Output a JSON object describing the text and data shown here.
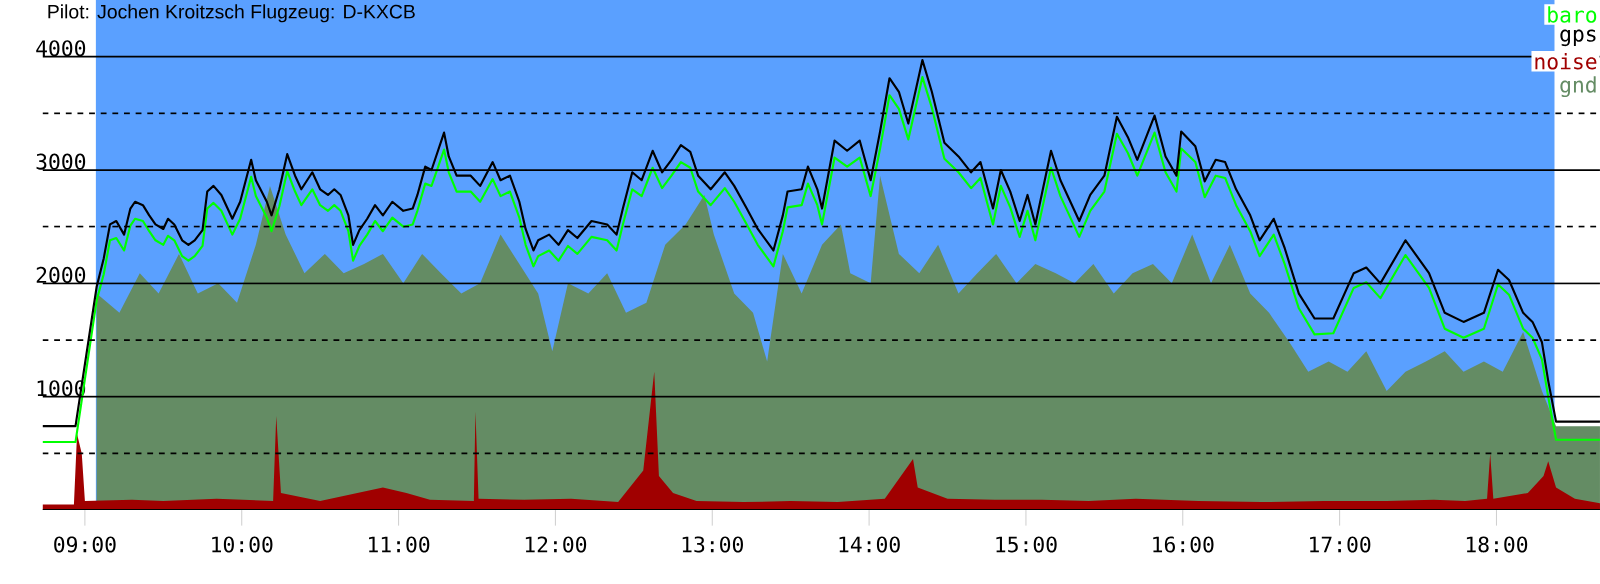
{
  "chart_data": {
    "type": "line",
    "title": "Pilot: Jochen Kroitzsch Flugzeug: D-KXCB",
    "x": [
      8.73,
      8.94,
      9.075,
      9.12,
      9.16,
      9.2,
      9.25,
      9.29,
      9.32,
      9.37,
      9.41,
      9.45,
      9.5,
      9.53,
      9.57,
      9.62,
      9.66,
      9.7,
      9.75,
      9.78,
      9.82,
      9.87,
      9.91,
      9.94,
      9.99,
      10.06,
      10.09,
      10.16,
      10.19,
      10.24,
      10.29,
      10.34,
      10.38,
      10.45,
      10.5,
      10.55,
      10.59,
      10.63,
      10.68,
      10.71,
      10.75,
      10.8,
      10.85,
      10.9,
      10.96,
      11.03,
      11.09,
      11.12,
      11.17,
      11.21,
      11.29,
      11.32,
      11.37,
      11.46,
      11.52,
      11.6,
      11.65,
      11.71,
      11.77,
      11.81,
      11.86,
      11.89,
      11.96,
      12.02,
      12.08,
      12.14,
      12.23,
      12.33,
      12.39,
      12.43,
      12.49,
      12.55,
      12.62,
      12.68,
      12.74,
      12.8,
      12.86,
      12.91,
      12.99,
      13.08,
      13.14,
      13.22,
      13.29,
      13.39,
      13.45,
      13.48,
      13.57,
      13.61,
      13.67,
      13.7,
      13.78,
      13.86,
      13.94,
      14.01,
      14.07,
      14.13,
      14.19,
      14.25,
      14.34,
      14.4,
      14.48,
      14.57,
      14.65,
      14.71,
      14.79,
      14.84,
      14.9,
      14.96,
      15.01,
      15.06,
      15.16,
      15.22,
      15.34,
      15.41,
      15.5,
      15.58,
      15.65,
      15.71,
      15.82,
      15.89,
      15.96,
      15.99,
      16.08,
      16.14,
      16.21,
      16.27,
      16.34,
      16.43,
      16.49,
      16.58,
      16.65,
      16.74,
      16.84,
      16.96,
      17.09,
      17.17,
      17.26,
      17.42,
      17.57,
      17.67,
      17.79,
      17.92,
      18.01,
      18.08,
      18.17,
      18.23,
      18.29,
      18.33,
      18.38,
      18.66
    ],
    "series": [
      {
        "name": "baro",
        "color": "#00ff00",
        "values": [
          600,
          600,
          1850,
          2080,
          2380,
          2400,
          2290,
          2510,
          2570,
          2550,
          2460,
          2380,
          2340,
          2420,
          2380,
          2240,
          2200,
          2240,
          2330,
          2660,
          2710,
          2640,
          2520,
          2430,
          2570,
          2940,
          2770,
          2580,
          2460,
          2680,
          2990,
          2810,
          2690,
          2830,
          2690,
          2640,
          2690,
          2640,
          2460,
          2200,
          2330,
          2430,
          2550,
          2460,
          2580,
          2500,
          2520,
          2640,
          2880,
          2860,
          3180,
          2980,
          2810,
          2810,
          2720,
          2920,
          2770,
          2810,
          2580,
          2340,
          2150,
          2240,
          2290,
          2200,
          2330,
          2260,
          2410,
          2380,
          2290,
          2520,
          2830,
          2770,
          3020,
          2840,
          2950,
          3070,
          3020,
          2810,
          2690,
          2840,
          2720,
          2520,
          2340,
          2150,
          2460,
          2670,
          2690,
          2880,
          2690,
          2520,
          3110,
          3030,
          3110,
          2770,
          3190,
          3660,
          3540,
          3270,
          3820,
          3550,
          3100,
          2980,
          2840,
          2930,
          2520,
          2860,
          2670,
          2410,
          2640,
          2380,
          3020,
          2770,
          2410,
          2640,
          2810,
          3320,
          3150,
          2950,
          3330,
          2980,
          2810,
          3190,
          3070,
          2760,
          2950,
          2930,
          2690,
          2460,
          2240,
          2430,
          2170,
          1780,
          1550,
          1560,
          1960,
          2010,
          1870,
          2250,
          1960,
          1600,
          1520,
          1600,
          1990,
          1900,
          1600,
          1520,
          1330,
          1000,
          620,
          620
        ]
      },
      {
        "name": "gps",
        "color": "#000000",
        "values": [
          740,
          740,
          1970,
          2220,
          2520,
          2550,
          2430,
          2660,
          2720,
          2690,
          2600,
          2520,
          2480,
          2570,
          2520,
          2380,
          2340,
          2380,
          2470,
          2810,
          2860,
          2780,
          2660,
          2570,
          2720,
          3090,
          2910,
          2720,
          2600,
          2830,
          3140,
          2950,
          2830,
          2980,
          2830,
          2780,
          2830,
          2780,
          2600,
          2340,
          2470,
          2570,
          2690,
          2600,
          2720,
          2640,
          2660,
          2780,
          3030,
          3000,
          3330,
          3120,
          2950,
          2950,
          2860,
          3070,
          2910,
          2950,
          2720,
          2480,
          2290,
          2380,
          2430,
          2340,
          2470,
          2400,
          2550,
          2520,
          2430,
          2660,
          2980,
          2910,
          3170,
          2980,
          3090,
          3220,
          3160,
          2950,
          2830,
          2980,
          2860,
          2660,
          2480,
          2290,
          2600,
          2810,
          2830,
          3030,
          2830,
          2660,
          3260,
          3170,
          3260,
          2910,
          3340,
          3810,
          3690,
          3410,
          3970,
          3690,
          3240,
          3120,
          2980,
          3070,
          2660,
          3000,
          2810,
          2550,
          2780,
          2520,
          3170,
          2910,
          2550,
          2780,
          2950,
          3470,
          3290,
          3090,
          3480,
          3120,
          2950,
          3340,
          3210,
          2900,
          3090,
          3070,
          2830,
          2600,
          2380,
          2570,
          2310,
          1910,
          1690,
          1690,
          2090,
          2140,
          2000,
          2380,
          2090,
          1740,
          1660,
          1740,
          2120,
          2030,
          1740,
          1660,
          1480,
          1140,
          780,
          780
        ]
      },
      {
        "name": "noise",
        "color": "#a00000",
        "type": "area",
        "x": [
          8.73,
          8.93,
          8.95,
          8.98,
          9.0,
          9.3,
          9.5,
          9.84,
          10.2,
          10.22,
          10.25,
          10.5,
          10.9,
          11.05,
          11.2,
          11.48,
          11.49,
          11.51,
          11.8,
          12.1,
          12.4,
          12.56,
          12.63,
          12.66,
          12.75,
          12.9,
          13.2,
          13.5,
          13.8,
          14.1,
          14.28,
          14.31,
          14.5,
          14.8,
          15.1,
          15.4,
          15.7,
          16.1,
          16.5,
          16.9,
          17.3,
          17.6,
          17.8,
          17.94,
          17.96,
          17.98,
          18.2,
          18.3,
          18.33,
          18.38,
          18.5,
          18.66
        ],
        "values": [
          50,
          50,
          670,
          500,
          80,
          90,
          80,
          100,
          80,
          830,
          150,
          80,
          200,
          150,
          90,
          80,
          870,
          100,
          90,
          100,
          70,
          350,
          1220,
          300,
          150,
          80,
          70,
          80,
          70,
          100,
          450,
          200,
          100,
          90,
          90,
          80,
          100,
          80,
          70,
          80,
          80,
          90,
          80,
          100,
          500,
          100,
          150,
          300,
          430,
          200,
          100,
          60
        ]
      },
      {
        "name": "gnd",
        "color": "#648c64",
        "type": "area",
        "x": [
          9.075,
          9.22,
          9.35,
          9.47,
          9.6,
          9.72,
          9.85,
          9.97,
          10.09,
          10.18,
          10.28,
          10.4,
          10.53,
          10.65,
          10.78,
          10.9,
          11.03,
          11.15,
          11.27,
          11.4,
          11.52,
          11.65,
          11.77,
          11.89,
          11.98,
          12.08,
          12.21,
          12.33,
          12.45,
          12.58,
          12.7,
          12.83,
          12.95,
          13.01,
          13.14,
          13.26,
          13.35,
          13.45,
          13.57,
          13.7,
          13.82,
          13.88,
          14.01,
          14.07,
          14.19,
          14.32,
          14.44,
          14.57,
          14.69,
          14.81,
          14.94,
          15.06,
          15.19,
          15.31,
          15.43,
          15.56,
          15.68,
          15.81,
          15.93,
          16.06,
          16.18,
          16.3,
          16.43,
          16.55,
          16.68,
          16.8,
          16.93,
          17.05,
          17.17,
          17.3,
          17.42,
          17.55,
          17.67,
          17.79,
          17.92,
          18.04,
          18.17,
          18.29,
          18.38,
          18.66
        ],
        "values": [
          1910,
          1740,
          2090,
          1910,
          2260,
          1910,
          2000,
          1830,
          2340,
          2860,
          2430,
          2090,
          2260,
          2090,
          2170,
          2260,
          2000,
          2260,
          2090,
          1910,
          2000,
          2430,
          2170,
          1910,
          1400,
          2000,
          1910,
          2090,
          1740,
          1830,
          2340,
          2520,
          2780,
          2430,
          1910,
          1740,
          1310,
          2260,
          1910,
          2340,
          2520,
          2090,
          2000,
          2950,
          2260,
          2090,
          2340,
          1910,
          2090,
          2260,
          2000,
          2170,
          2090,
          2000,
          2170,
          1910,
          2090,
          2170,
          2000,
          2430,
          2000,
          2340,
          1910,
          1740,
          1480,
          1220,
          1310,
          1220,
          1400,
          1050,
          1220,
          1310,
          1400,
          1220,
          1310,
          1220,
          1570,
          1050,
          740,
          740
        ]
      }
    ],
    "xlim": [
      8.73,
      18.66
    ],
    "ylim": [
      0,
      4500
    ],
    "xticks": [
      {
        "value": 9,
        "label": "09:00"
      },
      {
        "value": 10,
        "label": "10:00"
      },
      {
        "value": 11,
        "label": "11:00"
      },
      {
        "value": 12,
        "label": "12:00"
      },
      {
        "value": 13,
        "label": "13:00"
      },
      {
        "value": 14,
        "label": "14:00"
      },
      {
        "value": 15,
        "label": "15:00"
      },
      {
        "value": 16,
        "label": "16:00"
      },
      {
        "value": 17,
        "label": "17:00"
      },
      {
        "value": 18,
        "label": "18:00"
      }
    ],
    "yticks": [
      {
        "value": 500,
        "label": null
      },
      1000,
      {
        "value": 1500,
        "label": null
      },
      2000,
      {
        "value": 2500,
        "label": null
      },
      3000,
      {
        "value": 3500,
        "label": null
      },
      4000
    ],
    "bands": [
      {
        "axis": "x",
        "from": 9.07,
        "to": 18.37,
        "color": "#5aa0ff"
      }
    ],
    "grid": "y",
    "legend": "top right",
    "marker": "none"
  }
}
